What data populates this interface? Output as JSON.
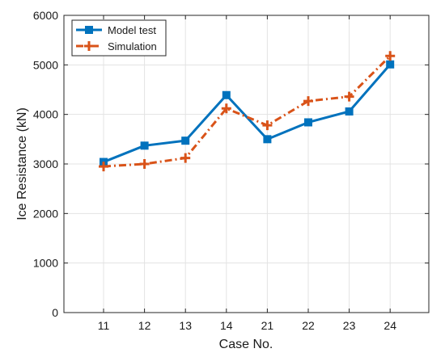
{
  "chart_data": {
    "type": "line",
    "xlabel": "Case No.",
    "ylabel": "Ice Resistance (kN)",
    "categories": [
      "11",
      "12",
      "13",
      "14",
      "21",
      "22",
      "23",
      "24"
    ],
    "ylim": [
      0,
      6000
    ],
    "yticks": [
      0,
      1000,
      2000,
      3000,
      4000,
      5000,
      6000
    ],
    "grid": true,
    "legend_position": "top-left",
    "series": [
      {
        "name": "Model test",
        "values": [
          3040,
          3370,
          3470,
          4390,
          3500,
          3840,
          4060,
          5010
        ],
        "color": "#0072BD",
        "line_style": "solid",
        "marker": "square"
      },
      {
        "name": "Simulation",
        "values": [
          2950,
          3000,
          3120,
          4120,
          3780,
          4270,
          4360,
          5180
        ],
        "color": "#D95319",
        "line_style": "dash-dot",
        "marker": "plus"
      }
    ]
  }
}
